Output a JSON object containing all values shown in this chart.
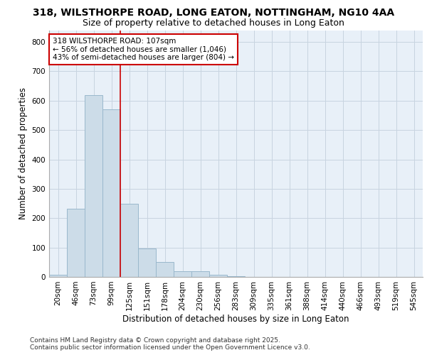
{
  "title_line1": "318, WILSTHORPE ROAD, LONG EATON, NOTTINGHAM, NG10 4AA",
  "title_line2": "Size of property relative to detached houses in Long Eaton",
  "xlabel": "Distribution of detached houses by size in Long Eaton",
  "ylabel": "Number of detached properties",
  "footer_line1": "Contains HM Land Registry data © Crown copyright and database right 2025.",
  "footer_line2": "Contains public sector information licensed under the Open Government Licence v3.0.",
  "bar_labels": [
    "20sqm",
    "46sqm",
    "73sqm",
    "99sqm",
    "125sqm",
    "151sqm",
    "178sqm",
    "204sqm",
    "230sqm",
    "256sqm",
    "283sqm",
    "309sqm",
    "335sqm",
    "361sqm",
    "388sqm",
    "414sqm",
    "440sqm",
    "466sqm",
    "493sqm",
    "519sqm",
    "545sqm"
  ],
  "bar_values": [
    8,
    232,
    620,
    570,
    250,
    97,
    50,
    20,
    20,
    8,
    3,
    0,
    0,
    0,
    0,
    0,
    0,
    0,
    0,
    0,
    0
  ],
  "bar_color": "#ccdce8",
  "bar_edgecolor": "#9ab8cc",
  "grid_color": "#c8d4e0",
  "background_color": "#e8f0f8",
  "vline_color": "#cc0000",
  "vline_position": 3.5,
  "annotation_text": "318 WILSTHORPE ROAD: 107sqm\n← 56% of detached houses are smaller (1,046)\n43% of semi-detached houses are larger (804) →",
  "annotation_box_facecolor": "#ffffff",
  "annotation_box_edgecolor": "#cc0000",
  "ylim": [
    0,
    840
  ],
  "yticks": [
    0,
    100,
    200,
    300,
    400,
    500,
    600,
    700,
    800
  ],
  "title_fontsize": 10,
  "subtitle_fontsize": 9,
  "axis_label_fontsize": 8.5,
  "tick_fontsize": 7.5,
  "annotation_fontsize": 7.5,
  "footer_fontsize": 6.5
}
